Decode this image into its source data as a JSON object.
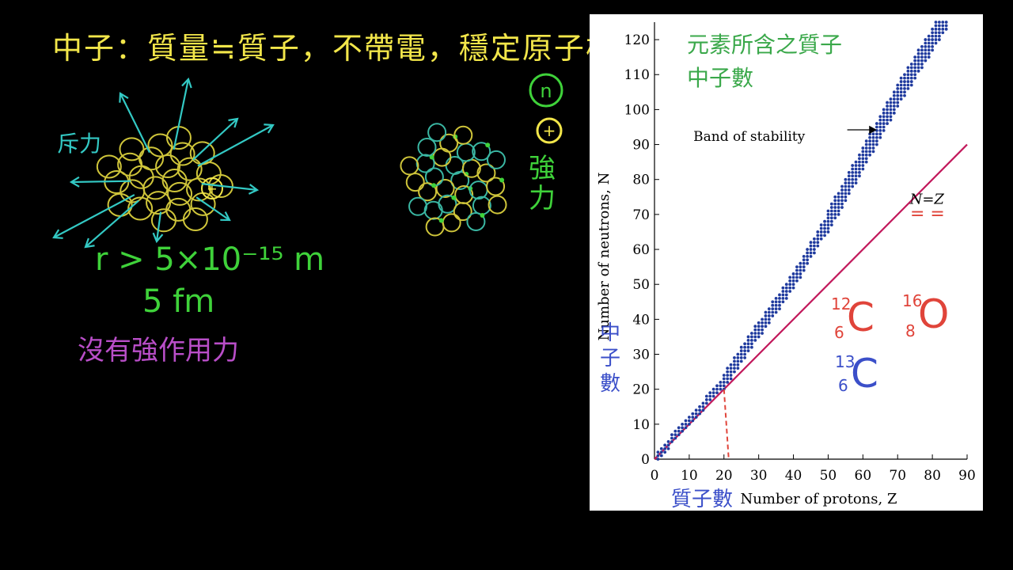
{
  "annotations": {
    "title": "中子：質量≒質子，不帶電，穩定原子核",
    "repulsion": "斥力",
    "radius": "r > 5×10⁻¹⁵ m",
    "fm": "5 fm",
    "no_strong_force": "沒有強作用力",
    "strong": "強力",
    "neutron_symbol": "n",
    "proton_symbol": "+",
    "neutrons_note": "元素所含之質子中子數",
    "zh_neutron": "中子數",
    "zh_proton": "質子數",
    "nz_equal": "= ="
  },
  "nuclides": {
    "c12": {
      "mass": "12",
      "z": "6",
      "el": "C"
    },
    "o16": {
      "mass": "16",
      "z": "8",
      "el": "O"
    },
    "c13": {
      "mass": "13",
      "z": "6",
      "el": "C"
    }
  },
  "colors": {
    "yellow": "#f2e64a",
    "cyan": "#33c9c4",
    "green": "#3fd23a",
    "purple": "#b94ec8",
    "blue": "#3b4fc9",
    "red": "#e0443a",
    "line": "#c2185b",
    "dots": "#1f3a9e"
  },
  "chart_data": {
    "type": "scatter",
    "xlabel": "Number of protons, Z",
    "ylabel": "Number of neutrons, N",
    "xlim": [
      0,
      90
    ],
    "ylim": [
      0,
      125
    ],
    "xticks": [
      0,
      10,
      20,
      30,
      40,
      50,
      60,
      70,
      80,
      90
    ],
    "yticks": [
      0,
      10,
      20,
      30,
      40,
      50,
      60,
      70,
      80,
      90,
      100,
      110,
      120
    ],
    "band_label": "Band of stability",
    "line_label": "N=Z",
    "line": {
      "x": [
        0,
        90
      ],
      "y": [
        0,
        90
      ]
    },
    "band": {
      "z": [
        0,
        10,
        20,
        30,
        40,
        50,
        60,
        70,
        80,
        84
      ],
      "n_center": [
        0,
        11,
        22,
        37,
        51,
        68,
        86,
        104,
        120,
        126
      ]
    },
    "marker": {
      "z": 20,
      "n": 20
    }
  }
}
